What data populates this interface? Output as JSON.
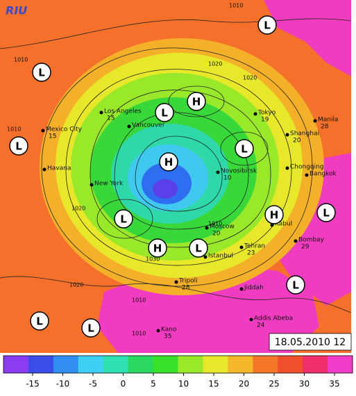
{
  "logo": "RIU",
  "timestamp": "18.05.2010 12",
  "colorbar": {
    "ticks": [
      -15,
      -10,
      -5,
      0,
      5,
      10,
      15,
      20,
      25,
      30,
      35
    ],
    "colors": [
      "#8a3cf0",
      "#3a4de8",
      "#2f8ef0",
      "#3fd0f5",
      "#2fe0b0",
      "#2bd860",
      "#38e02c",
      "#9ae82a",
      "#e8e82a",
      "#f5b82a",
      "#f5782a",
      "#f0502e",
      "#f0306a",
      "#f03cc8"
    ]
  },
  "pressure_centers": [
    "L",
    "L",
    "L",
    "H",
    "L",
    "H",
    "L",
    "L",
    "H",
    "L",
    "H",
    "L",
    "L",
    "L",
    "L"
  ],
  "isobar_labels": [
    "1010",
    "1010",
    "1010",
    "1020",
    "1020",
    "1020",
    "1010",
    "1030",
    "1020",
    "1010",
    "1010"
  ],
  "cities": [
    {
      "name": "Tokyo",
      "temp": "19"
    },
    {
      "name": "Manila",
      "temp": "28"
    },
    {
      "name": "Shanghai",
      "temp": "20"
    },
    {
      "name": "Mexico City",
      "temp": "15"
    },
    {
      "name": "Los Angeles",
      "temp": "15"
    },
    {
      "name": "Vancouver"
    },
    {
      "name": "Havana"
    },
    {
      "name": "New York"
    },
    {
      "name": "Chongqing"
    },
    {
      "name": "Bangkok"
    },
    {
      "name": "Novosibirsk",
      "temp": "10"
    },
    {
      "name": "Moscow",
      "temp": "20"
    },
    {
      "name": "Kabul"
    },
    {
      "name": "Bombay",
      "temp": "29"
    },
    {
      "name": "Tehran",
      "temp": "23"
    },
    {
      "name": "Istanbul"
    },
    {
      "name": "Tripoli",
      "temp": "28"
    },
    {
      "name": "Jiddah"
    },
    {
      "name": "Addis Abeba",
      "temp": "24"
    },
    {
      "name": "Kano",
      "temp": "35"
    }
  ]
}
